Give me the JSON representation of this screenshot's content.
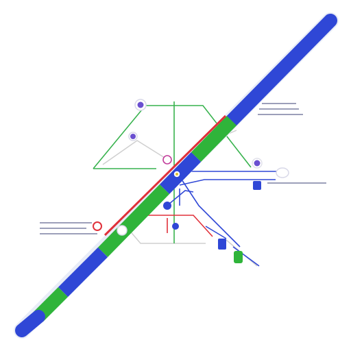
{
  "colors": {
    "blue": "#2f47d6",
    "green": "#2fb43a",
    "red": "#e0303a",
    "purple": "#6a4fd0",
    "grey": "#c8c8c8",
    "background": "#ffffff"
  },
  "icons": [
    "pin-icon",
    "node-icon",
    "station-icon"
  ],
  "labels": {
    "top_right": "",
    "mid_right": "",
    "left": ""
  }
}
